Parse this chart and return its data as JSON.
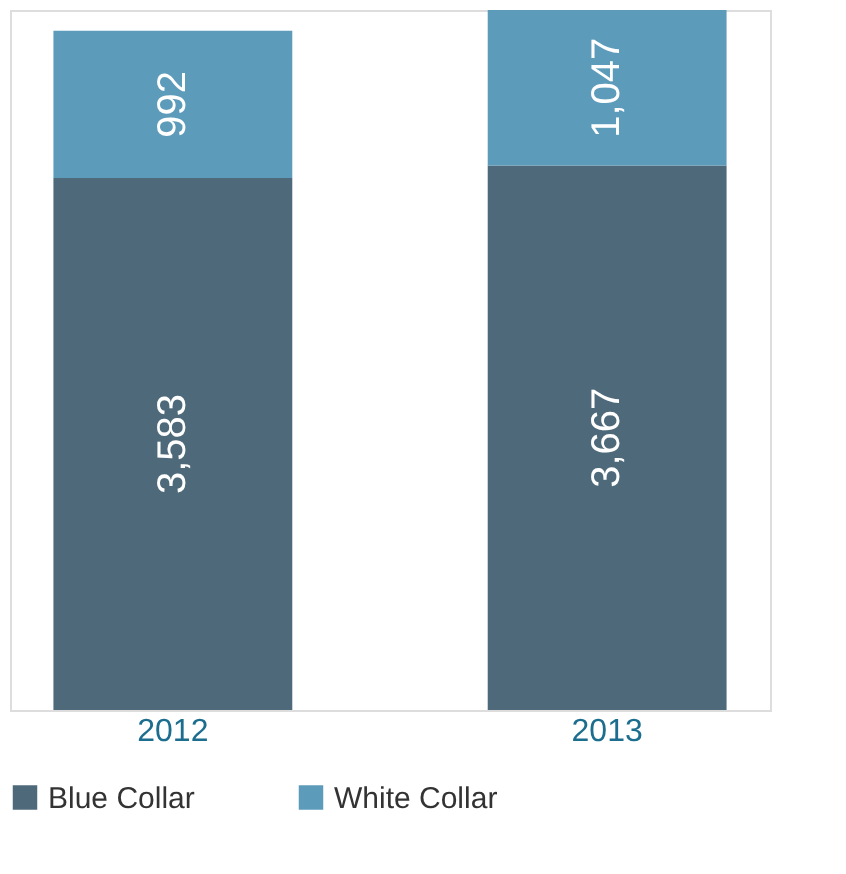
{
  "chart_data": {
    "type": "bar",
    "stacked": true,
    "categories": [
      "2012",
      "2013"
    ],
    "series": [
      {
        "name": "Blue Collar",
        "color": "#4e6a7a",
        "values": [
          3583,
          3667
        ],
        "value_labels": [
          "3,583",
          "3,667"
        ]
      },
      {
        "name": "White Collar",
        "color": "#5d9bbb",
        "values": [
          992,
          1047
        ],
        "value_labels": [
          "992",
          "1,047"
        ]
      }
    ],
    "legend": "bottom left",
    "grid": false
  }
}
